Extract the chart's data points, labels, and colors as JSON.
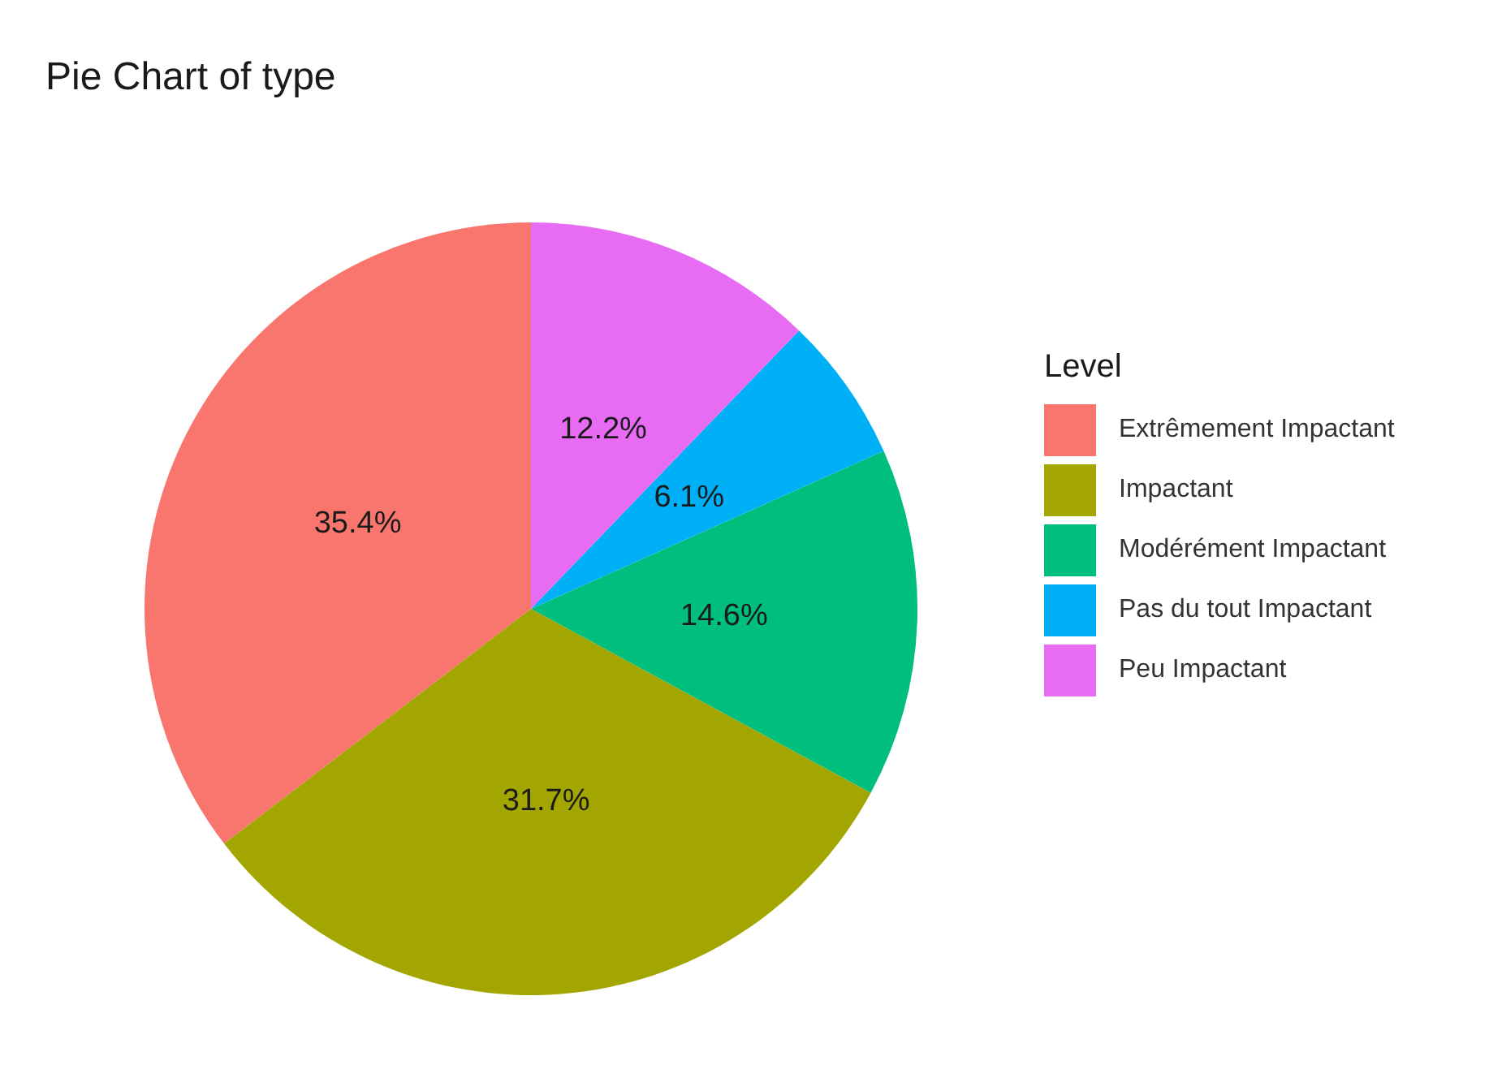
{
  "chart_data": {
    "type": "pie",
    "title": "Pie Chart of type",
    "legend_title": "Level",
    "legend": "right",
    "categories": [
      "Extrêmement Impactant",
      "Impactant",
      "Modérément Impactant",
      "Pas du tout Impactant",
      "Peu Impactant"
    ],
    "values": [
      35.4,
      31.7,
      14.6,
      6.1,
      12.2
    ],
    "value_labels": [
      "35.4%",
      "31.7%",
      "14.6%",
      "6.1%",
      "12.2%"
    ],
    "colors": [
      "#f8766d",
      "#a3a500",
      "#00bf7d",
      "#00b0f6",
      "#e76bf3"
    ]
  }
}
